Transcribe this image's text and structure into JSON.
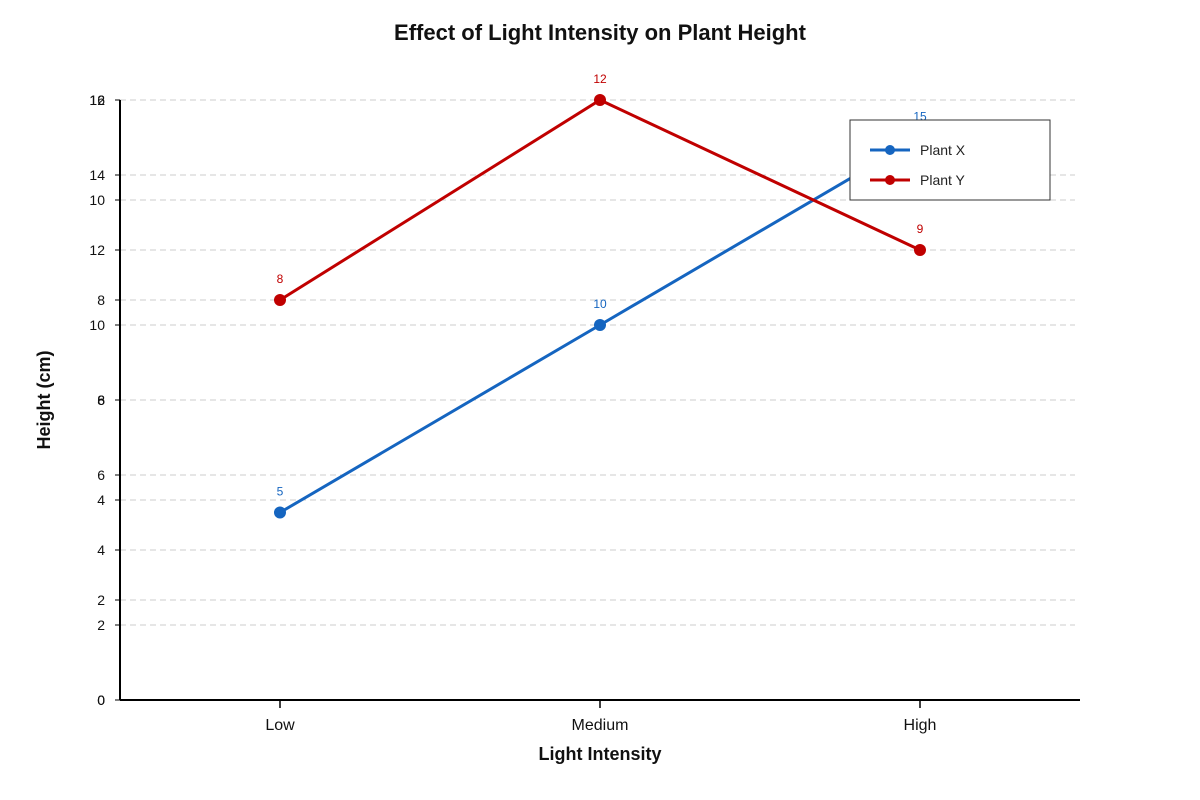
{
  "chart_data": {
    "type": "line",
    "title": "Effect of Light Intensity on Plant Height",
    "xlabel": "Light Intensity",
    "ylabel": "Height (cm)",
    "categories": [
      "Low",
      "Medium",
      "High"
    ],
    "grid": true,
    "legend_position": "top-right",
    "series": [
      {
        "name": "Plant X",
        "values": [
          5,
          10,
          15
        ],
        "color": "#1565c0",
        "ylim": [
          0,
          16
        ],
        "ticks": [
          0,
          2,
          4,
          6,
          8,
          10,
          12,
          14,
          16
        ]
      },
      {
        "name": "Plant Y",
        "values": [
          8,
          12,
          9
        ],
        "color": "#c00000",
        "ylim": [
          0,
          12
        ],
        "ticks": [
          0,
          2,
          4,
          6,
          8,
          10,
          12
        ]
      }
    ]
  }
}
